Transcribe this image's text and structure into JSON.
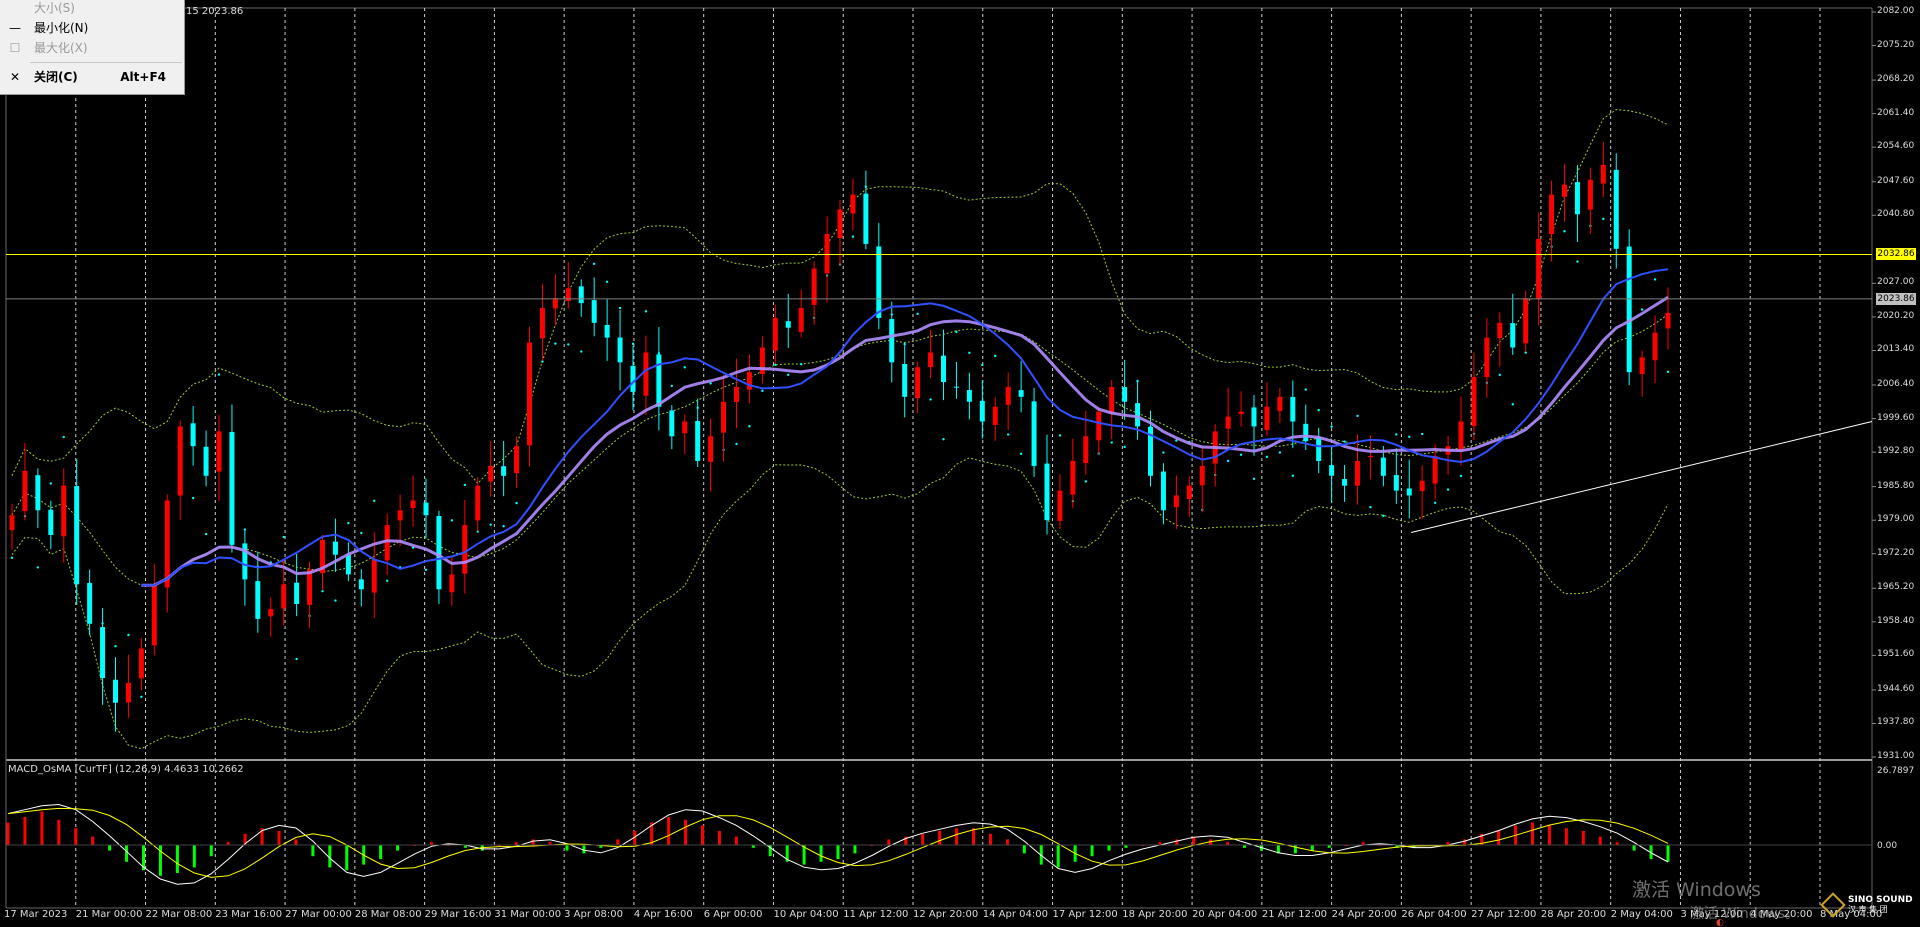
{
  "system_menu": {
    "items": [
      {
        "mark": "",
        "label": "大小(S)",
        "shortcut": "",
        "enabled": false
      },
      {
        "mark": "—",
        "label": "最小化(N)",
        "shortcut": "",
        "enabled": true
      },
      {
        "mark": "☐",
        "label": "最大化(X)",
        "shortcut": "",
        "enabled": false
      },
      {
        "mark": "✕",
        "label": "关闭(C)",
        "shortcut": "Alt+F4",
        "enabled": true
      }
    ]
  },
  "chart_info": "15 2023.86",
  "indicator_title": "MACD_OsMA [CurTF] (12,26,9) 4.4633 10.2662",
  "price_scale": [
    "2082.00",
    "2075.20",
    "2068.20",
    "2061.40",
    "2054.60",
    "2047.60",
    "2040.80",
    "2027.00",
    "2020.20",
    "2013.40",
    "2006.40",
    "1999.60",
    "1992.80",
    "1985.80",
    "1979.00",
    "1972.20",
    "1965.20",
    "1958.40",
    "1951.60",
    "1944.60",
    "1937.80",
    "1931.00"
  ],
  "price_tags": [
    {
      "label": "2032.86",
      "price": 2032.86,
      "color": "#ffff00"
    },
    {
      "label": "2023.86",
      "price": 2023.86,
      "color": "#c0c0c0"
    }
  ],
  "indicator_scale": [
    "26.7897",
    "0.00"
  ],
  "time_labels": [
    "17 Mar 2023",
    "21 Mar 00:00",
    "22 Mar 08:00",
    "23 Mar 16:00",
    "27 Mar 00:00",
    "28 Mar 08:00",
    "29 Mar 16:00",
    "31 Mar 00:00",
    "3 Apr 08:00",
    "4 Apr 16:00",
    "6 Apr 00:00",
    "10 Apr 04:00",
    "11 Apr 12:00",
    "12 Apr 20:00",
    "14 Apr 04:00",
    "17 Apr 12:00",
    "18 Apr 20:00",
    "20 Apr 04:00",
    "21 Apr 12:00",
    "24 Apr 20:00",
    "26 Apr 04:00",
    "27 Apr 12:00",
    "28 Apr 20:00",
    "2 May 04:00",
    "3 May 12:00",
    "4 May 20:00",
    "8 May 04:00"
  ],
  "watermark": {
    "line1": "激活 Windows",
    "line2": "激活 Windows。"
  },
  "logo": {
    "name": "SINO SOUND",
    "sub": "汉 声 集 团"
  },
  "colors": {
    "background": "#000000",
    "bull_candle": "#ff0000",
    "bear_candle": "#00ffff",
    "bollinger": "#9acd32",
    "parabolic_sar": "#00ffff",
    "ma_fast": "#3050ff",
    "ma_slow": "#b08cff",
    "h_line_yellow": "#ffff00",
    "h_line_gray": "#808080",
    "trendline": "#ffffff",
    "histogram_pos": "#ff0000",
    "histogram_neg": "#00ff00",
    "macd_line": "#ffffff",
    "signal_line": "#ffff00"
  },
  "chart_data": {
    "type": "candlestick",
    "symbol_timeframe": "H4",
    "ylim": [
      1931.0,
      2082.0
    ],
    "indicator_ylim": [
      -12,
      26.7897
    ],
    "horizontal_levels": [
      2032.86,
      2023.86
    ],
    "trendline": {
      "from_label": "27 Apr 12:00",
      "from_price": 1976.5,
      "to_label": "8 May 04:00",
      "to_price": 1995.0
    },
    "candles_close": [
      1980,
      1989,
      1981,
      1976,
      1986,
      1966,
      1958,
      1947,
      1942,
      1946,
      1953,
      1966,
      1983,
      1998,
      1994,
      1988,
      1997,
      1974,
      1967,
      1959,
      1961,
      1966,
      1962,
      1969,
      1975,
      1972,
      1968,
      1965,
      1971,
      1978,
      1981,
      1983,
      1980,
      1965,
      1968,
      1978,
      1986,
      1990,
      1988,
      1994,
      2015,
      2022,
      2024,
      2026,
      2023,
      2019,
      2016,
      2011,
      2005,
      2013,
      2002,
      1996,
      1999,
      1991,
      1996,
      2003,
      2006,
      2009,
      2014,
      2020,
      2018,
      2022,
      2030,
      2037,
      2042,
      2045,
      2035,
      2020,
      2011,
      2004,
      2010,
      2013,
      2007,
      2006,
      2003,
      1999,
      2002,
      2006,
      2004,
      1990,
      1979,
      1985,
      1991,
      1996,
      2001,
      2006,
      2003,
      1998,
      1988,
      1981,
      1984,
      1986,
      1990,
      1997,
      2000,
      2001,
      1998,
      2002,
      2004,
      1999,
      1995,
      1991,
      1988,
      1986,
      1991,
      1992,
      1988,
      1985,
      1984,
      1987,
      1992,
      1994,
      1999,
      2008,
      2016,
      2019,
      2014,
      2024,
      2036,
      2045,
      2047,
      2041,
      2048,
      2051,
      2034,
      2009,
      2012,
      2017,
      2021
    ],
    "histogram": [
      8,
      10,
      12,
      9,
      6,
      3,
      -2,
      -6,
      -9,
      -11,
      -10,
      -8,
      -4,
      1,
      4,
      6,
      5,
      2,
      -4,
      -8,
      -9,
      -7,
      -5,
      -2,
      0,
      1,
      0,
      -1,
      -2,
      0,
      1,
      2,
      1,
      -2,
      -3,
      -1,
      2,
      5,
      8,
      10,
      9,
      7,
      5,
      3,
      -1,
      -4,
      -6,
      -7,
      -6,
      -5,
      -3,
      0,
      2,
      3,
      4,
      5,
      6,
      6,
      4,
      2,
      -3,
      -7,
      -8,
      -6,
      -4,
      -2,
      -1,
      0,
      1,
      2,
      3,
      2,
      1,
      -1,
      -2,
      -3,
      -3,
      -2,
      -1,
      0,
      1,
      0,
      -1,
      -1,
      0,
      1,
      2,
      4,
      5,
      7,
      8,
      7,
      6,
      5,
      3,
      1,
      -2,
      -5,
      -6
    ]
  }
}
